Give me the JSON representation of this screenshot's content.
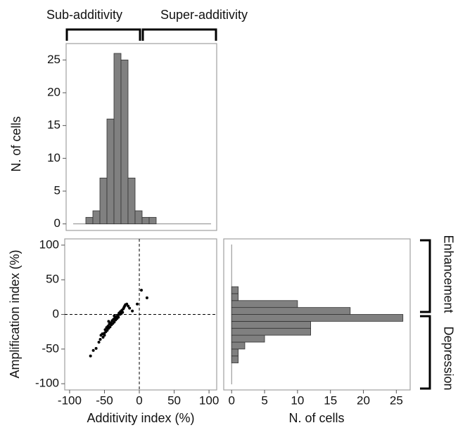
{
  "chart_data": [
    {
      "type": "histogram",
      "orientation": "vertical",
      "ylabel": "N. of cells",
      "annotations": [
        "Sub-additivity",
        "Super-additivity"
      ],
      "bins": [
        -80,
        -70,
        -60,
        -50,
        -40,
        -30,
        -20,
        -10,
        0,
        10,
        20
      ],
      "values": [
        1,
        2,
        7,
        16,
        26,
        25,
        7,
        2,
        1,
        1
      ],
      "color": "#808080",
      "xlim": [
        -108,
        106
      ],
      "ylim": [
        -1,
        27.5
      ],
      "yticks": [
        0,
        5,
        10,
        15,
        20,
        25
      ]
    },
    {
      "type": "scatter",
      "xlabel": "Additivity index (%)",
      "ylabel": "Amplification index (%)",
      "x": [
        -70,
        -66,
        -62,
        -58,
        -56,
        -55,
        -53,
        -52,
        -50,
        -49,
        -48,
        -47,
        -46,
        -45,
        -44,
        -43,
        -42,
        -41,
        -40,
        -39,
        -38,
        -37,
        -36,
        -35,
        -34,
        -33,
        -32,
        -31,
        -30,
        -29,
        -28,
        -27,
        -26,
        -25,
        -24,
        -23,
        -22,
        -21,
        -20,
        -18,
        -16,
        -14,
        -10,
        -3,
        3,
        11,
        -36,
        -44,
        -50
      ],
      "y": [
        -60,
        -52,
        -49,
        -40,
        -36,
        -30,
        -28,
        -33,
        -27,
        -22,
        -25,
        -19,
        -23,
        -17,
        -20,
        -14,
        -18,
        -12,
        -15,
        -9,
        -13,
        -7,
        -11,
        -5,
        -8,
        -3,
        -6,
        -1,
        -4,
        2,
        0,
        4,
        1,
        6,
        3,
        8,
        10,
        12,
        14,
        15,
        12,
        9,
        5,
        15,
        35,
        24,
        -2,
        -10,
        -30
      ],
      "color": "#000000",
      "xlim": [
        -107,
        111
      ],
      "ylim": [
        -109,
        109
      ],
      "xticks": [
        -100,
        -50,
        0,
        50,
        100
      ],
      "yticks": [
        -100,
        -50,
        0,
        50,
        100
      ],
      "reference_lines": true
    },
    {
      "type": "histogram",
      "orientation": "horizontal",
      "xlabel": "N. of cells",
      "annotations": [
        "Enhancement",
        "Depression"
      ],
      "bins": [
        -70,
        -60,
        -50,
        -40,
        -30,
        -20,
        -10,
        0,
        10,
        20,
        30,
        40
      ],
      "values": [
        1,
        1,
        2,
        5,
        12,
        12,
        26,
        18,
        10,
        1,
        1
      ],
      "color": "#808080",
      "xlim": [
        -1.2,
        27.1
      ],
      "ylim": [
        -109,
        109
      ],
      "xticks": [
        0,
        5,
        10,
        15,
        20,
        25
      ]
    }
  ]
}
